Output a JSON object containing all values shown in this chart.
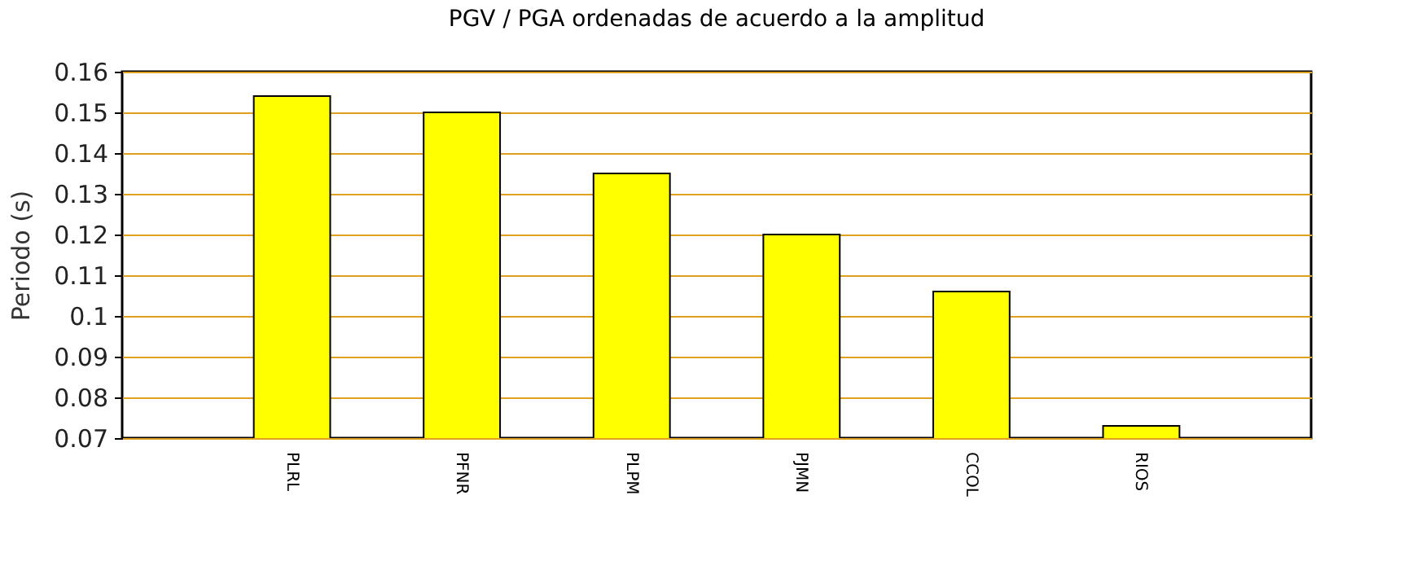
{
  "chart_data": {
    "type": "bar",
    "title": "PGV / PGA ordenadas de acuerdo a la amplitud",
    "ylabel": "Periodo (s)",
    "categories": [
      "PLRL",
      "PFNR",
      "PLPM",
      "PJMN",
      "CCOL",
      "RIOS"
    ],
    "values": [
      0.154,
      0.15,
      0.135,
      0.12,
      0.106,
      0.073
    ],
    "color": "#ffff00",
    "ylim": [
      0.07,
      0.16
    ],
    "yticks": [
      0.07,
      0.08,
      0.09,
      0.1,
      0.11,
      0.12,
      0.13,
      0.14,
      0.15,
      0.16
    ],
    "grid": "y"
  }
}
